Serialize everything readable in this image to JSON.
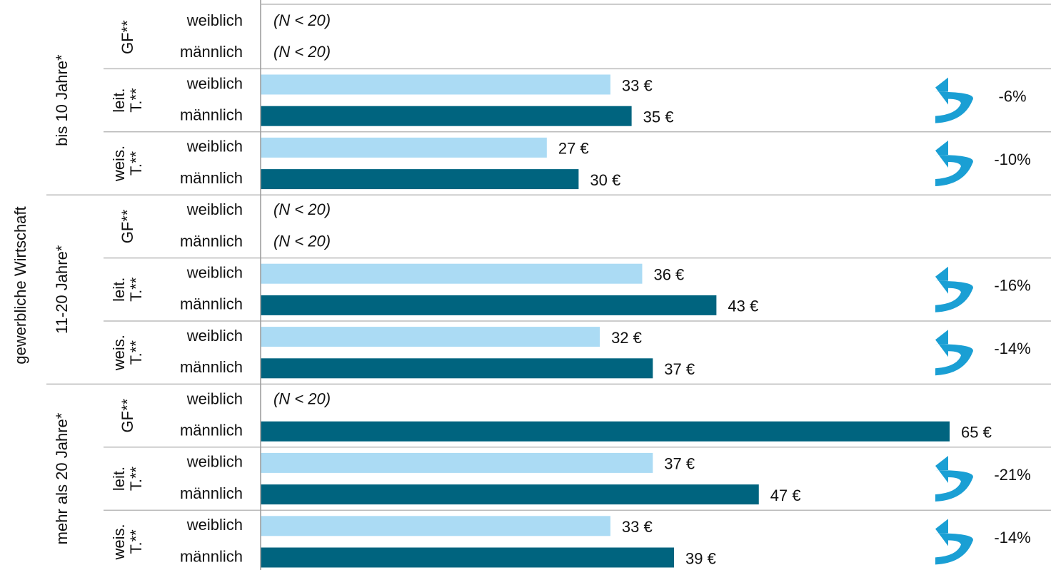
{
  "chart_data": {
    "type": "bar",
    "axis_label": "gewerbliche Wirtschaft",
    "colors": [
      "#abdbf4",
      "#00647f"
    ],
    "arrow_color": "#1a9fd4",
    "xlim": [
      0,
      65
    ],
    "groups": [
      {
        "label": "bis 10 Jahre*",
        "subgroups": [
          {
            "label_lines": [
              "GF**"
            ],
            "categories": [
              "weiblich",
              "männlich"
            ],
            "values": [
              null,
              null
            ],
            "value_labels": [
              "(N < 20)",
              "(N < 20)"
            ]
          },
          {
            "label_lines": [
              "leit.",
              "T.**"
            ],
            "categories": [
              "weiblich",
              "männlich"
            ],
            "values": [
              33,
              35
            ],
            "value_labels": [
              "33 €",
              "35 €"
            ],
            "gap": "-6%"
          },
          {
            "label_lines": [
              "weis.",
              "T.**"
            ],
            "categories": [
              "weiblich",
              "männlich"
            ],
            "values": [
              27,
              30
            ],
            "value_labels": [
              "27 €",
              "30 €"
            ],
            "gap": "-10%"
          }
        ]
      },
      {
        "label": "11-20 Jahre*",
        "subgroups": [
          {
            "label_lines": [
              "GF**"
            ],
            "categories": [
              "weiblich",
              "männlich"
            ],
            "values": [
              null,
              null
            ],
            "value_labels": [
              "(N < 20)",
              "(N < 20)"
            ]
          },
          {
            "label_lines": [
              "leit.",
              "T.**"
            ],
            "categories": [
              "weiblich",
              "männlich"
            ],
            "values": [
              36,
              43
            ],
            "value_labels": [
              "36 €",
              "43 €"
            ],
            "gap": "-16%"
          },
          {
            "label_lines": [
              "weis.",
              "T.**"
            ],
            "categories": [
              "weiblich",
              "männlich"
            ],
            "values": [
              32,
              37
            ],
            "value_labels": [
              "32 €",
              "37 €"
            ],
            "gap": "-14%"
          }
        ]
      },
      {
        "label": "mehr als 20 Jahre*",
        "subgroups": [
          {
            "label_lines": [
              "GF**"
            ],
            "categories": [
              "weiblich",
              "männlich"
            ],
            "values": [
              null,
              65
            ],
            "value_labels": [
              "(N < 20)",
              "65 €"
            ]
          },
          {
            "label_lines": [
              "leit.",
              "T.**"
            ],
            "categories": [
              "weiblich",
              "männlich"
            ],
            "values": [
              37,
              47
            ],
            "value_labels": [
              "37 €",
              "47 €"
            ],
            "gap": "-21%"
          },
          {
            "label_lines": [
              "weis.",
              "T.**"
            ],
            "categories": [
              "weiblich",
              "männlich"
            ],
            "values": [
              33,
              39
            ],
            "value_labels": [
              "33 €",
              "39 €"
            ],
            "gap": "-14%"
          }
        ]
      }
    ]
  }
}
